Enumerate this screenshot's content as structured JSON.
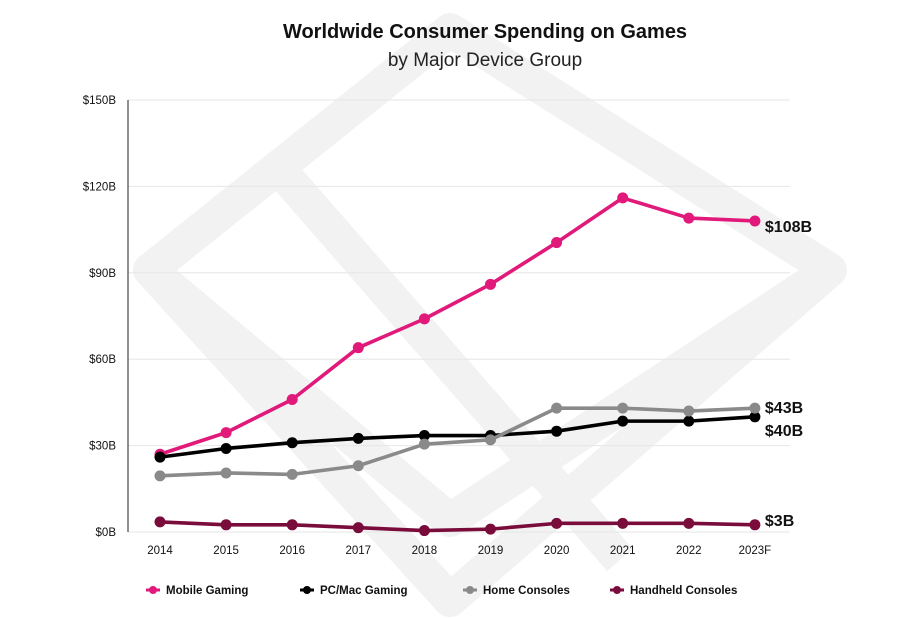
{
  "colors": {
    "mobile": "#e0197a",
    "pc": "#000000",
    "console": "#8a8a8a",
    "handheld": "#7a0c3c",
    "grid": "#e6e6e6",
    "watermark": "#f2f2f2"
  },
  "chart_data": {
    "type": "line",
    "title": "Worldwide Consumer Spending on Games",
    "subtitle": "by Major Device Group",
    "categories": [
      "2014",
      "2015",
      "2016",
      "2017",
      "2018",
      "2019",
      "2020",
      "2021",
      "2022",
      "2023F"
    ],
    "y_ticks": [
      "$0B",
      "$30B",
      "$60B",
      "$90B",
      "$120B",
      "$150B"
    ],
    "ylim": [
      0,
      150
    ],
    "grid": true,
    "legend_position": "bottom",
    "series": [
      {
        "name": "Mobile Gaming",
        "key": "mobile",
        "values": [
          27,
          34.5,
          46,
          64,
          74,
          86,
          100.5,
          116,
          109,
          108
        ],
        "end_label": "$108B"
      },
      {
        "name": "PC/Mac Gaming",
        "key": "pc",
        "values": [
          26,
          29,
          31,
          32.5,
          33.5,
          33.5,
          35,
          38.5,
          38.5,
          40
        ],
        "end_label": "$40B"
      },
      {
        "name": "Home Consoles",
        "key": "console",
        "values": [
          19.5,
          20.5,
          20,
          23,
          30.5,
          32,
          43,
          43,
          42,
          43
        ],
        "end_label": "$43B"
      },
      {
        "name": "Handheld Consoles",
        "key": "handheld",
        "values": [
          3.5,
          2.5,
          2.5,
          1.5,
          0.5,
          1,
          3,
          3,
          3,
          2.5
        ],
        "end_label": "$3B"
      }
    ]
  }
}
